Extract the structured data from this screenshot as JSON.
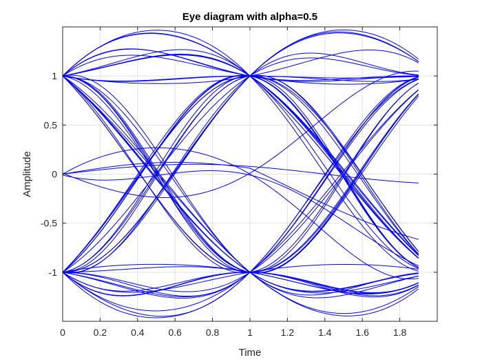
{
  "chart_data": {
    "type": "line",
    "title": "Eye diagram with alpha=0.5",
    "xlabel": "Time",
    "ylabel": "Amplitude",
    "alpha": 0.5,
    "xlim": [
      0,
      2
    ],
    "ylim": [
      -1.5,
      1.5
    ],
    "x_ticks": [
      0,
      0.2,
      0.4,
      0.6,
      0.8,
      1,
      1.2,
      1.4,
      1.6,
      1.8
    ],
    "x_tick_labels": [
      "0",
      "0.2",
      "0.4",
      "0.6",
      "0.8",
      "1",
      "1.2",
      "1.4",
      "1.6",
      "1.8"
    ],
    "y_ticks": [
      -1,
      -0.5,
      0,
      0.5,
      1
    ],
    "y_tick_labels": [
      "-1",
      "-0.5",
      "0",
      "0.5",
      "1"
    ],
    "grid": true,
    "line_color": "#0000ff",
    "trace_period": 1,
    "trace_x_range": [
      0,
      1.9
    ],
    "series": [
      {
        "values": [
          1,
          1
        ]
      },
      {
        "values": [
          1,
          -1
        ]
      },
      {
        "values": [
          -1,
          1
        ]
      },
      {
        "values": [
          -1,
          -1
        ]
      },
      {
        "values": [
          0,
          0
        ]
      }
    ]
  }
}
